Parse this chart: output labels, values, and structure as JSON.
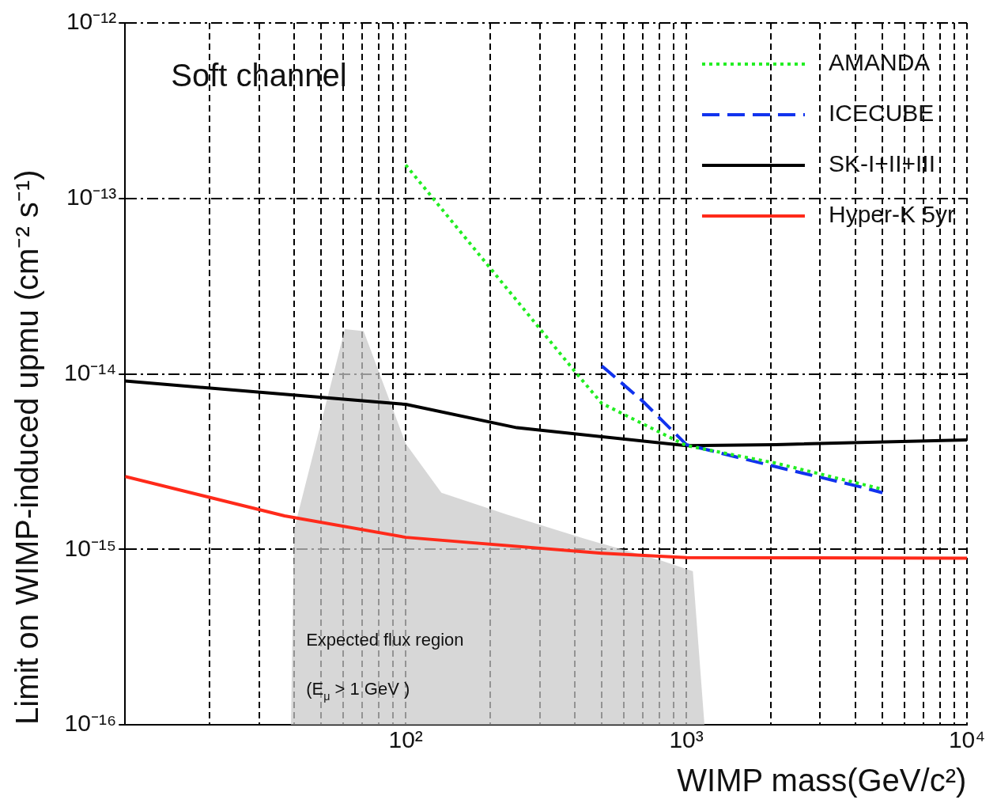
{
  "chart_data": {
    "type": "line",
    "xlabel": "WIMP mass(GeV/c²)",
    "ylabel": "Limit on WIMP-induced upmu (cm⁻² s⁻¹)",
    "log": "xy",
    "grid": true,
    "legend": "top right",
    "xlim": [
      10,
      10000
    ],
    "ylim": [
      1e-16,
      1e-12
    ],
    "xticks": [
      {
        "value": 10,
        "label": null
      },
      {
        "value": 20,
        "label": null
      },
      {
        "value": 30,
        "label": null
      },
      {
        "value": 40,
        "label": null
      },
      {
        "value": 50,
        "label": null
      },
      {
        "value": 60,
        "label": null
      },
      {
        "value": 70,
        "label": null
      },
      {
        "value": 80,
        "label": null
      },
      {
        "value": 90,
        "label": null
      },
      {
        "value": 100,
        "label": "10²"
      },
      {
        "value": 200,
        "label": null
      },
      {
        "value": 300,
        "label": null
      },
      {
        "value": 400,
        "label": null
      },
      {
        "value": 500,
        "label": null
      },
      {
        "value": 600,
        "label": null
      },
      {
        "value": 700,
        "label": null
      },
      {
        "value": 800,
        "label": null
      },
      {
        "value": 900,
        "label": null
      },
      {
        "value": 1000,
        "label": "10³"
      },
      {
        "value": 2000,
        "label": null
      },
      {
        "value": 3000,
        "label": null
      },
      {
        "value": 4000,
        "label": null
      },
      {
        "value": 5000,
        "label": null
      },
      {
        "value": 6000,
        "label": null
      },
      {
        "value": 7000,
        "label": null
      },
      {
        "value": 8000,
        "label": null
      },
      {
        "value": 9000,
        "label": null
      },
      {
        "value": 10000,
        "label": "10⁴"
      }
    ],
    "yticks": [
      {
        "value": 1e-16,
        "label": "10⁻¹⁶"
      },
      {
        "value": 1e-15,
        "label": "10⁻¹⁵"
      },
      {
        "value": 1e-14,
        "label": "10⁻¹⁴"
      },
      {
        "value": 1e-13,
        "label": "10⁻¹³"
      },
      {
        "value": 1e-12,
        "label": "10⁻¹²"
      }
    ],
    "annotations": [
      "Soft channel",
      "Expected flux region",
      "(E$_{μ}$ > 1 GeV )"
    ],
    "series": [
      {
        "type": "area",
        "color": "#c8c8c8",
        "x": [
          39,
          40,
          60.7,
          70.8,
          100,
          134,
          229,
          433,
          818,
          1055,
          1160
        ],
        "values": [
          1e-16,
          1.3e-15,
          1.8e-14,
          1.75e-14,
          4e-15,
          2.1e-15,
          1.58e-15,
          1.15e-15,
          8.6e-16,
          7.5e-16,
          1e-16
        ]
      },
      {
        "name": "AMANDA",
        "color": "#22ee22",
        "line_style": "dotted",
        "x": [
          100,
          401,
          499,
          1000,
          2080,
          5000
        ],
        "values": [
          1.55e-13,
          1.03e-14,
          6.8e-15,
          3.9e-15,
          3.1e-15,
          2.2e-15
        ]
      },
      {
        "name": "ICECUBE",
        "color": "#1133ee",
        "line_style": "dashed",
        "x": [
          500,
          705,
          1000,
          2190,
          4220,
          5000
        ],
        "values": [
          1.11e-14,
          6.9e-15,
          3.95e-15,
          2.9e-15,
          2.26e-15,
          2.1e-15
        ]
      },
      {
        "name": "SK-I+II+III",
        "color": "#000000",
        "line_style": "solid",
        "x": [
          10,
          100,
          249,
          1000,
          2080,
          10000
        ],
        "values": [
          9.1e-15,
          6.7e-15,
          4.93e-15,
          3.9e-15,
          3.95e-15,
          4.2e-15
        ]
      },
      {
        "name": "Hyper-K 5yr",
        "color": "#ff2a1a",
        "line_style": "solid",
        "x": [
          10,
          37,
          100,
          500,
          1000,
          10000
        ],
        "values": [
          2.6e-15,
          1.55e-15,
          1.17e-15,
          9.5e-16,
          8.97e-16,
          8.9e-16
        ]
      }
    ]
  }
}
